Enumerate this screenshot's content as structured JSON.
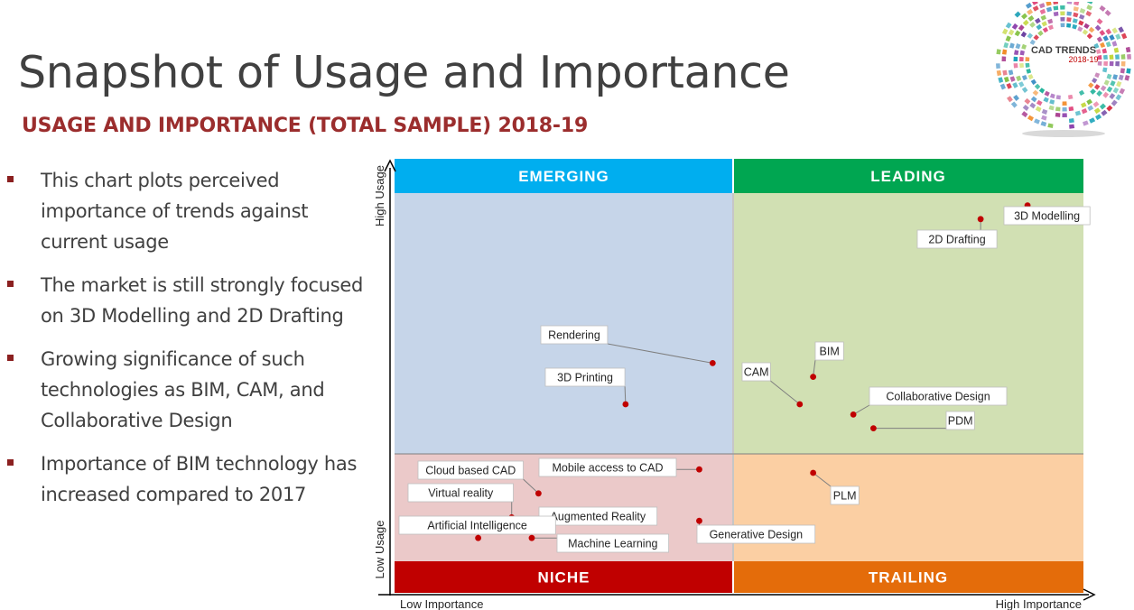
{
  "slide": {
    "title": "Snapshot of Usage and Importance",
    "subtitle": "USAGE AND IMPORTANCE (TOTAL SAMPLE) 2018-19",
    "bullets": [
      "This chart plots perceived importance of trends against current usage",
      "The market is still strongly focused on 3D Modelling and 2D Drafting",
      "Growing significance of such technologies as BIM, CAM, and Collaborative Design",
      "Importance of BIM technology has increased compared to 2017"
    ]
  },
  "logo": {
    "line1": "CAD TRENDS",
    "line2": "2018-19"
  },
  "colors": {
    "emerging_header": "#00aeef",
    "leading_header": "#00a651",
    "niche_header": "#c00000",
    "trailing_header": "#e46c0a",
    "emerging_bg": "#c6d5e9",
    "leading_bg": "#d1e0b3",
    "niche_bg": "#ebc9c9",
    "trailing_bg": "#fbcfa3",
    "dot": "#c00000"
  },
  "chart_data": {
    "type": "scatter",
    "xlabel": "",
    "ylabel": "",
    "x_axis_labels": {
      "low": "Low Importance",
      "high": "High Importance"
    },
    "y_axis_labels": {
      "low": "Low Usage",
      "high": "High Usage"
    },
    "xlim": [
      0,
      100
    ],
    "ylim": [
      0,
      100
    ],
    "quadrants": [
      {
        "name": "EMERGING",
        "position": "top-left"
      },
      {
        "name": "LEADING",
        "position": "top-right"
      },
      {
        "name": "NICHE",
        "position": "bottom-left"
      },
      {
        "name": "TRAILING",
        "position": "bottom-right"
      }
    ],
    "points": [
      {
        "label": "3D Modelling",
        "x": 93,
        "y": 98
      },
      {
        "label": "2D Drafting",
        "x": 86,
        "y": 94
      },
      {
        "label": "Rendering",
        "x": 46,
        "y": 52
      },
      {
        "label": "BIM",
        "x": 61,
        "y": 48
      },
      {
        "label": "3D Printing",
        "x": 33,
        "y": 40
      },
      {
        "label": "CAM",
        "x": 59,
        "y": 40
      },
      {
        "label": "Collaborative Design",
        "x": 67,
        "y": 37
      },
      {
        "label": "PDM",
        "x": 70,
        "y": 33
      },
      {
        "label": "Mobile access to CAD",
        "x": 44,
        "y": 21
      },
      {
        "label": "PLM",
        "x": 61,
        "y": 20
      },
      {
        "label": "Cloud based CAD",
        "x": 20,
        "y": 14
      },
      {
        "label": "Virtual reality",
        "x": 16,
        "y": 7
      },
      {
        "label": "Augmented Reality",
        "x": 19,
        "y": 6
      },
      {
        "label": "Generative Design",
        "x": 44,
        "y": 6
      },
      {
        "label": "Artificial Intelligence",
        "x": 11,
        "y": 1
      },
      {
        "label": "Machine Learning",
        "x": 19,
        "y": 1
      }
    ]
  }
}
